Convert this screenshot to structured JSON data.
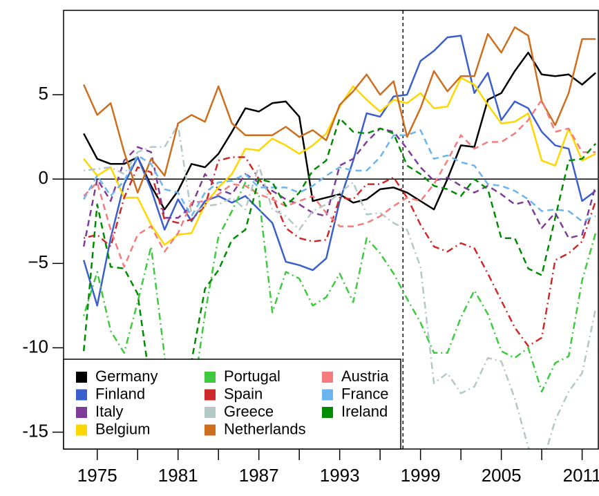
{
  "chart_data": {
    "type": "line",
    "x": [
      1974,
      1975,
      1976,
      1977,
      1978,
      1979,
      1980,
      1981,
      1982,
      1983,
      1984,
      1985,
      1986,
      1987,
      1988,
      1989,
      1990,
      1991,
      1992,
      1993,
      1994,
      1995,
      1996,
      1997,
      1998,
      1999,
      2000,
      2001,
      2002,
      2003,
      2004,
      2005,
      2006,
      2007,
      2008,
      2009,
      2010,
      2011,
      2012
    ],
    "xlim": [
      1972.5,
      2012.2
    ],
    "xticks": [
      1975,
      1981,
      1987,
      1993,
      1999,
      2005,
      2011
    ],
    "x_minor_ticks": [
      1978,
      1984,
      1990,
      1996,
      2002,
      2008
    ],
    "ylim": [
      -16,
      10
    ],
    "yticks": [
      {
        "value": -15,
        "label": "-15"
      },
      {
        "value": -10,
        "label": "-10"
      },
      {
        "value": -5,
        "label": "−5"
      },
      0,
      5
    ],
    "hline": 0,
    "vline": 1997.7,
    "legend": "bottom-left",
    "series": [
      {
        "name": "Germany",
        "color": "#000000",
        "linestyle": "solid",
        "values": [
          2.7,
          1.2,
          0.9,
          0.9,
          1.3,
          -0.4,
          -1.8,
          -0.7,
          0.9,
          0.7,
          1.5,
          2.8,
          4.2,
          4.0,
          4.5,
          4.6,
          3.7,
          -1.3,
          -1.1,
          -0.9,
          -1.4,
          -1.2,
          -0.6,
          -0.5,
          -0.8,
          -1.3,
          -1.8,
          0.0,
          2.0,
          1.9,
          4.7,
          5.1,
          6.4,
          7.5,
          6.2,
          6.1,
          6.2,
          5.6,
          6.3
        ]
      },
      {
        "name": "Finland",
        "color": "#3a5fcd",
        "linestyle": "solid",
        "values": [
          -4.8,
          -7.5,
          -3.5,
          -0.3,
          1.3,
          -0.6,
          -3.0,
          -1.2,
          -2.5,
          -1.3,
          -1.0,
          -1.4,
          -1.0,
          -1.8,
          -2.6,
          -4.9,
          -5.1,
          -5.4,
          -4.7,
          -1.3,
          1.1,
          3.9,
          3.7,
          4.9,
          5.0,
          7.0,
          7.6,
          8.4,
          8.5,
          5.1,
          6.3,
          3.5,
          4.6,
          4.2,
          2.8,
          2.0,
          1.8,
          -1.3,
          -0.7
        ]
      },
      {
        "name": "Italy",
        "color": "#7d3c98",
        "linestyle": "dashed",
        "values": [
          -4.0,
          0.0,
          -1.3,
          1.1,
          1.9,
          1.6,
          -2.3,
          -2.3,
          -1.6,
          0.3,
          -0.6,
          -0.9,
          0.3,
          -0.2,
          -0.7,
          -1.2,
          -1.5,
          -2.0,
          -2.2,
          0.8,
          1.2,
          2.2,
          3.0,
          2.8,
          1.8,
          0.7,
          -0.1,
          0.1,
          -0.4,
          -0.8,
          -0.4,
          -0.9,
          -1.5,
          -1.3,
          -2.9,
          -2.0,
          -3.5,
          -3.3,
          -0.4
        ]
      },
      {
        "name": "Belgium",
        "color": "#ffd700",
        "linestyle": "solid",
        "values": [
          1.2,
          0.2,
          0.7,
          -1.1,
          -1.1,
          -2.7,
          -3.9,
          -3.3,
          -3.2,
          -1.5,
          -0.5,
          0.3,
          1.8,
          1.7,
          2.4,
          2.0,
          1.5,
          2.0,
          2.7,
          4.3,
          5.5,
          4.7,
          4.0,
          4.7,
          4.5,
          5.1,
          4.2,
          4.3,
          6.0,
          5.6,
          4.4,
          3.3,
          3.4,
          3.9,
          1.1,
          0.8,
          3.0,
          1.1,
          1.5
        ]
      },
      {
        "name": "Portugal",
        "color": "#3ec93e",
        "linestyle": "dotdash",
        "values": [
          -8.1,
          -5.5,
          -9.0,
          -10.3,
          -7.3,
          -4.0,
          -10.5,
          -17.0,
          -13.5,
          -8.0,
          -3.4,
          -1.9,
          -0.2,
          -1.0,
          -7.9,
          -5.5,
          -5.9,
          -7.5,
          -7.0,
          -5.6,
          -7.3,
          -3.5,
          -4.4,
          -5.6,
          -7.1,
          -8.5,
          -10.3,
          -10.3,
          -8.2,
          -6.6,
          -8.0,
          -10.2,
          -10.6,
          -10.0,
          -12.6,
          -10.9,
          -10.5,
          -6.0,
          -3.2
        ]
      },
      {
        "name": "Spain",
        "color": "#cc2a2a",
        "linestyle": "dotdash",
        "values": [
          -3.5,
          -3.3,
          -4.0,
          -1.1,
          0.7,
          0.4,
          -2.4,
          -2.6,
          -2.4,
          -1.6,
          1.1,
          1.3,
          1.3,
          0.0,
          -1.0,
          -2.9,
          -3.5,
          -3.7,
          -3.6,
          -1.1,
          -1.2,
          -0.3,
          -0.3,
          0.1,
          -1.1,
          -2.7,
          -4.0,
          -4.3,
          -3.8,
          -4.1,
          -5.6,
          -7.2,
          -8.8,
          -9.9,
          -9.4,
          -4.8,
          -4.4,
          -3.7,
          -1.3
        ]
      },
      {
        "name": "Greece",
        "color": "#b4c8c8",
        "linestyle": "dotdash",
        "values": [
          0.5,
          0.6,
          0.7,
          0.3,
          1.6,
          1.9,
          1.9,
          3.2,
          -2.1,
          -1.6,
          -1.5,
          -1.1,
          -1.8,
          0.8,
          -1.8,
          -2.2,
          -3.0,
          -1.9,
          -1.5,
          -0.8,
          -0.2,
          -2.1,
          -2.0,
          -2.6,
          -3.0,
          -5.2,
          -12.1,
          -11.5,
          -12.7,
          -12.3,
          -10.6,
          -10.8,
          -13.0,
          -15.9,
          -17.0,
          -14.3,
          -12.6,
          -11.5,
          -7.7
        ]
      },
      {
        "name": "Netherlands",
        "color": "#cd6e1e",
        "linestyle": "solid",
        "values": [
          5.6,
          3.8,
          4.5,
          1.6,
          -0.8,
          1.2,
          0.2,
          3.3,
          3.8,
          3.4,
          5.5,
          3.3,
          2.6,
          2.6,
          2.6,
          3.1,
          2.5,
          2.9,
          2.3,
          4.4,
          5.2,
          6.2,
          5.0,
          5.8,
          2.5,
          4.2,
          6.4,
          5.2,
          6.1,
          6.1,
          8.6,
          7.5,
          9.0,
          8.5,
          4.6,
          3.2,
          5.1,
          8.3,
          8.3
        ]
      },
      {
        "name": "Austria",
        "color": "#f47c7c",
        "linestyle": "dashed",
        "values": [
          -1.0,
          -0.2,
          -3.0,
          -5.2,
          -3.3,
          -2.8,
          -4.3,
          -3.2,
          -1.4,
          -1.3,
          -0.9,
          -0.3,
          -0.4,
          -0.9,
          -1.2,
          -1.6,
          -1.3,
          -1.0,
          -2.0,
          -2.8,
          -2.8,
          -2.6,
          -2.2,
          -1.6,
          -1.1,
          -1.3,
          -0.3,
          1.1,
          2.6,
          1.8,
          2.2,
          2.2,
          2.7,
          3.5,
          4.7,
          2.8,
          3.0,
          1.6,
          1.6
        ]
      },
      {
        "name": "France",
        "color": "#6cb4ee",
        "linestyle": "dashed",
        "values": [
          -1.2,
          0.2,
          -1.0,
          -0.1,
          1.4,
          0.9,
          -0.6,
          -0.8,
          -2.2,
          -0.8,
          -0.2,
          -0.1,
          0.3,
          -0.5,
          -0.5,
          -0.5,
          -0.8,
          -0.4,
          0.2,
          0.7,
          0.5,
          0.5,
          1.3,
          2.6,
          2.6,
          2.9,
          1.2,
          1.4,
          1.0,
          0.8,
          -0.3,
          -0.4,
          -0.7,
          -1.2,
          -1.9,
          -1.8,
          -1.9,
          -2.5,
          -2.2
        ]
      },
      {
        "name": "Ireland",
        "color": "#008b00",
        "linestyle": "dashed",
        "values": [
          -10.2,
          -1.5,
          -5.2,
          -5.3,
          -6.8,
          -12.5,
          -13.0,
          -14.5,
          -10.8,
          -6.5,
          -5.4,
          -3.6,
          -3.0,
          0.0,
          -0.2,
          -1.6,
          -0.8,
          0.5,
          1.1,
          3.6,
          2.8,
          2.7,
          3.0,
          2.7,
          0.8,
          0.3,
          -0.4,
          -0.6,
          -1.0,
          0.0,
          -0.6,
          -3.5,
          -3.5,
          -5.3,
          -5.7,
          -2.3,
          1.1,
          1.2,
          2.1
        ]
      }
    ]
  }
}
